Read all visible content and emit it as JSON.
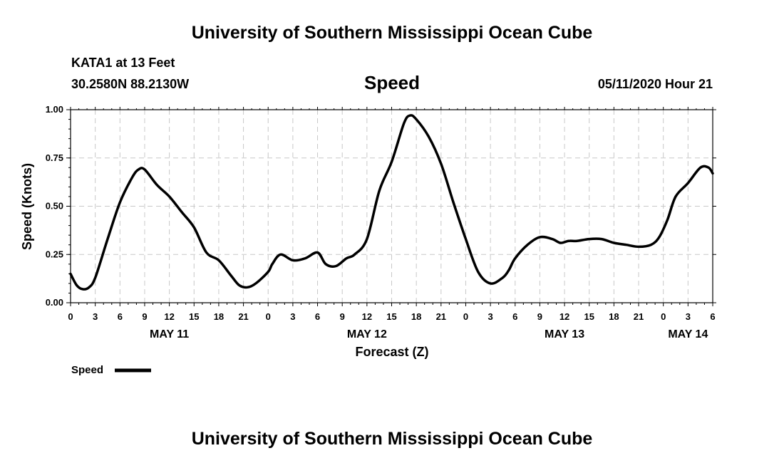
{
  "header": {
    "title": "University of Southern Mississippi Ocean Cube",
    "station": "KATA1 at 13 Feet",
    "coords": "30.2580N 88.2130W",
    "plot_title": "Speed",
    "issued": "05/11/2020 Hour 21"
  },
  "footer": {
    "title": "University of Southern Mississippi Ocean Cube"
  },
  "chart_data": {
    "type": "line",
    "title": "Speed",
    "xlabel": "Forecast (Z)",
    "ylabel": "Speed (Knots)",
    "ylim": [
      0,
      1.0
    ],
    "yticks": [
      "0.00",
      "0.25",
      "0.50",
      "0.75",
      "1.00"
    ],
    "grid": true,
    "legend": "bottom-left",
    "line_color": "#000000",
    "x_hours_range": [
      0,
      78
    ],
    "xtick_labels": [
      "0",
      "3",
      "6",
      "9",
      "12",
      "15",
      "18",
      "21",
      "0",
      "3",
      "6",
      "9",
      "12",
      "15",
      "18",
      "21",
      "0",
      "3",
      "6",
      "9",
      "12",
      "15",
      "18",
      "21",
      "0",
      "3",
      "6"
    ],
    "date_labels": [
      "MAY 11",
      "MAY 12",
      "MAY 13",
      "MAY 14"
    ],
    "date_label_hours": [
      12,
      36,
      60,
      75
    ],
    "series": [
      {
        "name": "Speed",
        "x": [
          0,
          0.75,
          1.5,
          2.25,
          3,
          4.5,
          6,
          7.5,
          8.25,
          9,
          10.5,
          12,
          13.5,
          15,
          16.5,
          18,
          19.5,
          20.5,
          21.5,
          22.5,
          24,
          24.5,
          25.5,
          27,
          28.5,
          30,
          31,
          32.25,
          33.5,
          34.5,
          36,
          37.5,
          39,
          40.5,
          41.25,
          42,
          43.5,
          45,
          46.5,
          48,
          49.5,
          51,
          52.5,
          53.25,
          54,
          55.5,
          57,
          58.5,
          59.5,
          60.5,
          61.5,
          63,
          64.5,
          66,
          67.5,
          69,
          70.5,
          71.5,
          72.5,
          73.5,
          75,
          76.5,
          77.5,
          78
        ],
        "y": [
          0.15,
          0.09,
          0.07,
          0.08,
          0.13,
          0.33,
          0.52,
          0.65,
          0.69,
          0.69,
          0.61,
          0.55,
          0.47,
          0.39,
          0.26,
          0.22,
          0.14,
          0.09,
          0.08,
          0.1,
          0.16,
          0.2,
          0.25,
          0.22,
          0.23,
          0.26,
          0.2,
          0.19,
          0.23,
          0.25,
          0.33,
          0.58,
          0.73,
          0.93,
          0.97,
          0.95,
          0.86,
          0.72,
          0.52,
          0.33,
          0.16,
          0.1,
          0.13,
          0.17,
          0.23,
          0.3,
          0.34,
          0.33,
          0.31,
          0.32,
          0.32,
          0.33,
          0.33,
          0.31,
          0.3,
          0.29,
          0.3,
          0.34,
          0.43,
          0.55,
          0.62,
          0.7,
          0.7,
          0.67
        ]
      }
    ]
  }
}
